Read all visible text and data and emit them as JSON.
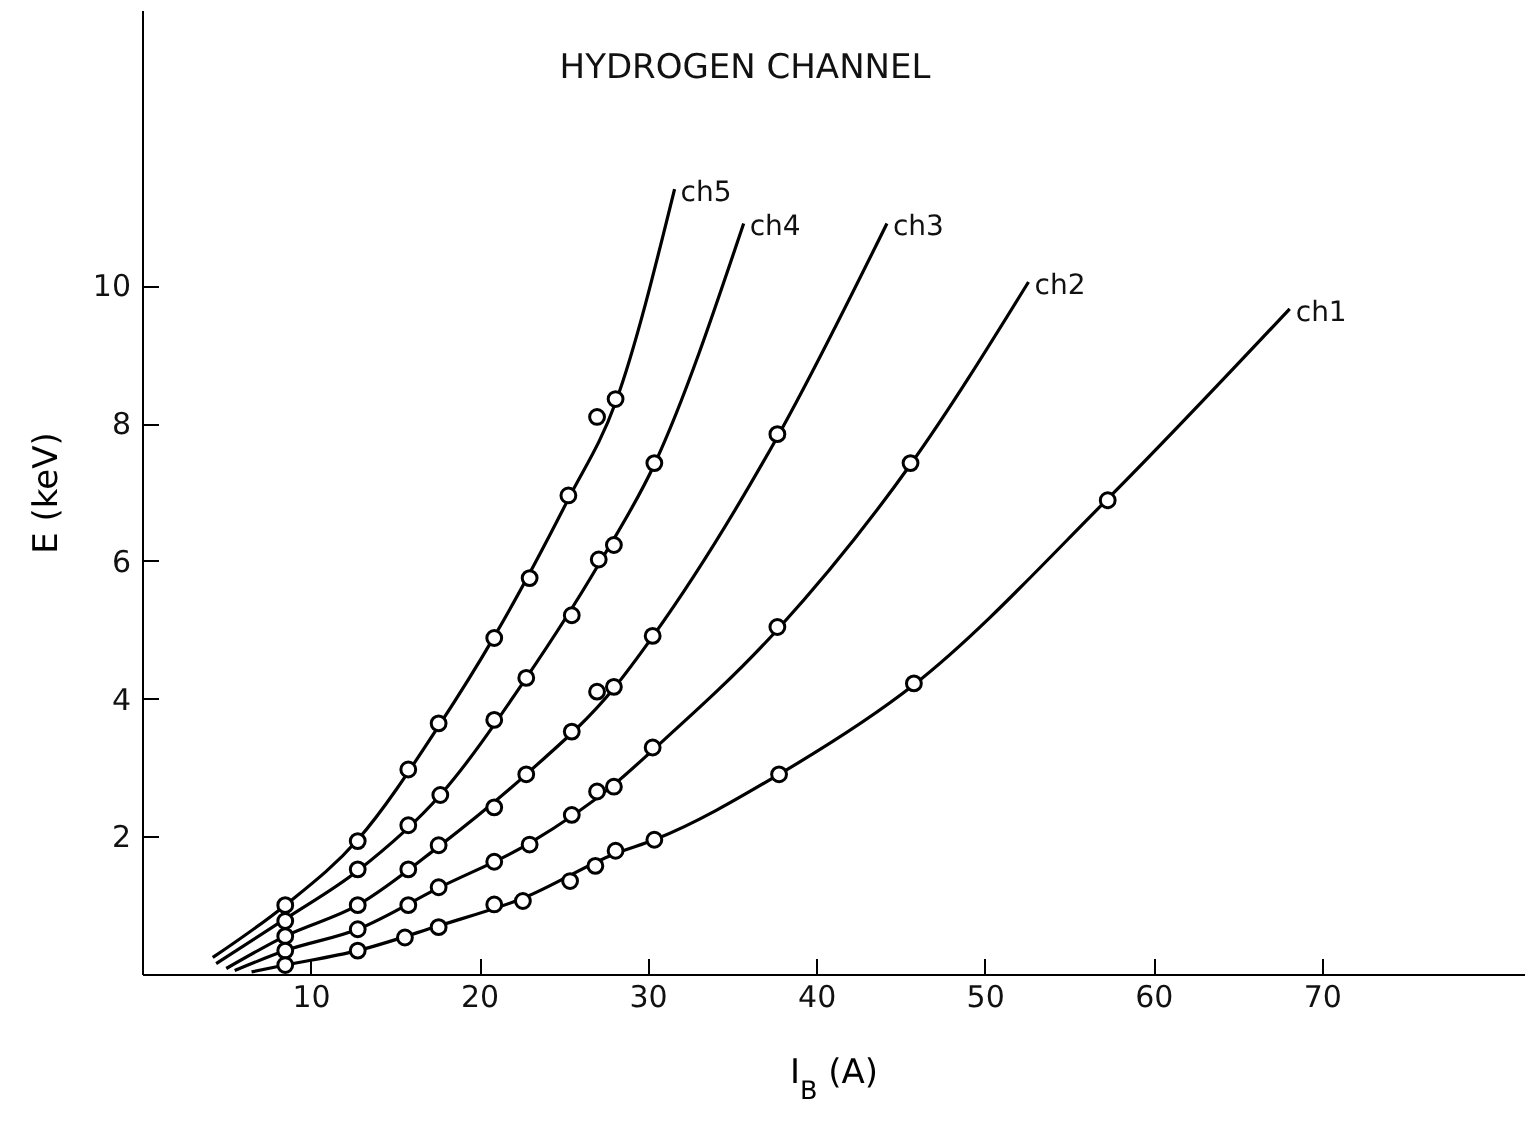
{
  "chart_data": {
    "type": "line",
    "title": "HYDROGEN CHANNEL",
    "xlabel": "I$_{B}$ (A)",
    "ylabel": "E (keV)",
    "xlim": [
      0,
      82
    ],
    "ylim": [
      0,
      14
    ],
    "xticks": [
      10,
      20,
      30,
      40,
      50,
      60,
      70
    ],
    "yticks": [
      2,
      4,
      6,
      8,
      10
    ],
    "grid": false,
    "line_style": "solid",
    "series": [
      {
        "name": "ch5",
        "color": "#000000",
        "x": [
          4.2,
          8.5,
          12.8,
          17.6,
          20.9,
          25.3,
          28.1,
          31.6
        ],
        "values": [
          0.24,
          1.0,
          1.95,
          3.6,
          4.9,
          6.9,
          8.3,
          11.4
        ]
      },
      {
        "name": "ch4",
        "color": "#000000",
        "x": [
          4.4,
          8.5,
          12.8,
          17.7,
          22.8,
          27.1,
          30.4,
          35.7
        ],
        "values": [
          0.15,
          0.8,
          1.5,
          2.6,
          4.3,
          5.95,
          7.4,
          10.9
        ]
      },
      {
        "name": "ch3",
        "color": "#000000",
        "x": [
          5,
          8.5,
          12.8,
          17.6,
          22.8,
          28,
          30.3,
          37.7,
          44.2
        ],
        "values": [
          0.08,
          0.55,
          1.0,
          1.85,
          2.9,
          4.15,
          4.9,
          7.8,
          10.9
        ]
      },
      {
        "name": "ch2",
        "color": "#000000",
        "x": [
          5.5,
          8.5,
          12.8,
          17.6,
          23,
          28,
          30.3,
          37.7,
          45.6,
          52.6
        ],
        "values": [
          0.05,
          0.34,
          0.65,
          1.25,
          1.9,
          2.75,
          3.25,
          5.0,
          7.4,
          10.05
        ]
      },
      {
        "name": "ch1",
        "color": "#000000",
        "x": [
          6.5,
          8.5,
          12.8,
          17.6,
          22.6,
          28.1,
          30.4,
          37.8,
          45.8,
          57.3,
          68.1
        ],
        "values": [
          0.03,
          0.13,
          0.34,
          0.7,
          1.1,
          1.75,
          1.95,
          2.9,
          4.2,
          6.9,
          9.66
        ]
      },
      {
        "type": "scatter",
        "marker": "circle",
        "color": "#000000",
        "x": [
          8.5,
          12.8,
          15.8,
          17.6,
          20.9,
          23.0,
          25.3,
          27.0,
          28.1
        ],
        "values": [
          1.0,
          1.93,
          2.97,
          3.64,
          4.88,
          5.75,
          6.95,
          8.09,
          8.35
        ]
      },
      {
        "type": "scatter",
        "marker": "circle",
        "color": "#000000",
        "x": [
          8.5,
          12.8,
          15.8,
          17.7,
          20.9,
          22.8,
          25.5,
          27.1,
          28.0,
          30.4
        ],
        "values": [
          0.77,
          1.52,
          2.16,
          2.6,
          3.69,
          4.3,
          5.21,
          6.02,
          6.23,
          7.42
        ]
      },
      {
        "type": "scatter",
        "marker": "circle",
        "color": "#000000",
        "x": [
          8.5,
          12.8,
          15.8,
          17.6,
          20.9,
          22.8,
          25.5,
          27.0,
          28.0,
          30.3,
          37.7
        ],
        "values": [
          0.55,
          1.0,
          1.52,
          1.87,
          2.42,
          2.9,
          3.52,
          4.1,
          4.17,
          4.91,
          7.84
        ]
      },
      {
        "type": "scatter",
        "marker": "circle",
        "color": "#000000",
        "x": [
          8.5,
          12.8,
          15.8,
          17.6,
          20.9,
          23.0,
          25.5,
          27.0,
          28.0,
          30.3,
          37.7,
          45.6
        ],
        "values": [
          0.34,
          0.65,
          1.0,
          1.26,
          1.63,
          1.88,
          2.31,
          2.65,
          2.72,
          3.29,
          5.04,
          7.42
        ]
      },
      {
        "type": "scatter",
        "marker": "circle",
        "color": "#000000",
        "x": [
          8.5,
          12.8,
          15.6,
          17.6,
          20.9,
          22.6,
          25.4,
          26.9,
          28.1,
          30.4,
          37.8,
          45.8,
          57.3
        ],
        "values": [
          0.13,
          0.34,
          0.53,
          0.68,
          1.01,
          1.06,
          1.35,
          1.57,
          1.79,
          1.95,
          2.9,
          4.22,
          6.88
        ]
      }
    ]
  }
}
